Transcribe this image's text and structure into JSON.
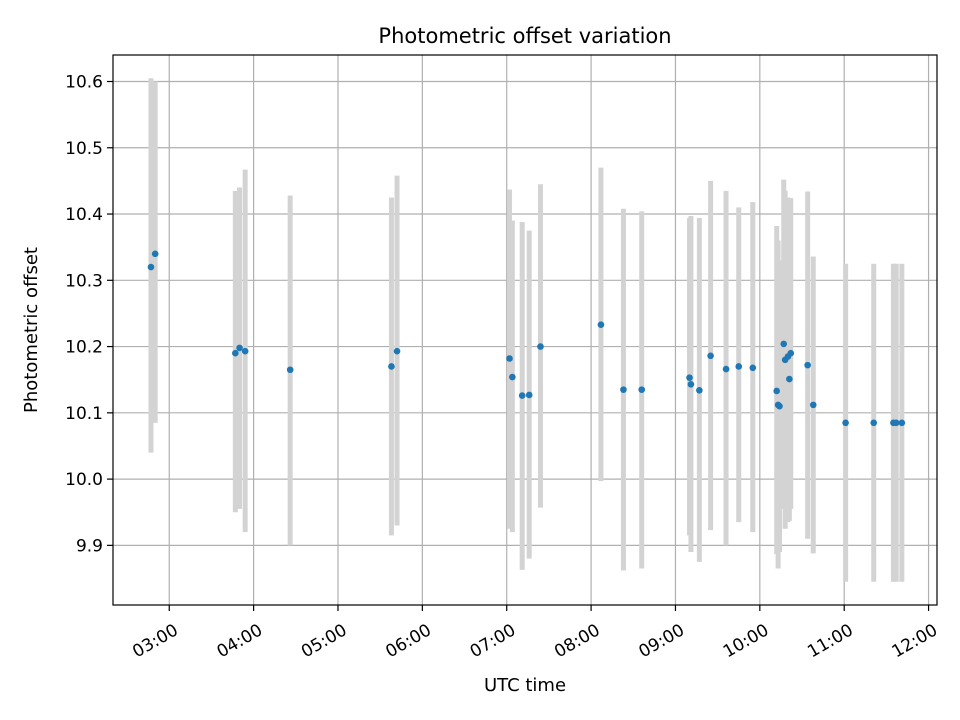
{
  "chart_data": {
    "type": "scatter",
    "title": "Photometric offset variation",
    "xlabel": "UTC time",
    "ylabel": "Photometric offset",
    "x_axis_type": "time",
    "xlim": [
      "02:20",
      "12:06"
    ],
    "ylim": [
      9.81,
      10.64
    ],
    "x_ticks": [
      "03:00",
      "04:00",
      "05:00",
      "06:00",
      "07:00",
      "08:00",
      "09:00",
      "10:00",
      "11:00",
      "12:00"
    ],
    "y_ticks": [
      "9.9",
      "10.0",
      "10.1",
      "10.2",
      "10.3",
      "10.4",
      "10.5",
      "10.6"
    ],
    "grid": true,
    "marker_color": "#1f77b4",
    "errorbar_color": "#d3d3d3",
    "points": [
      {
        "x": "02:47",
        "y": 10.32,
        "ylow": 10.04,
        "yhigh": 10.605
      },
      {
        "x": "02:50",
        "y": 10.34,
        "ylow": 10.085,
        "yhigh": 10.6
      },
      {
        "x": "03:47",
        "y": 10.19,
        "ylow": 9.95,
        "yhigh": 10.435
      },
      {
        "x": "03:50",
        "y": 10.198,
        "ylow": 9.955,
        "yhigh": 10.44
      },
      {
        "x": "03:54",
        "y": 10.193,
        "ylow": 9.92,
        "yhigh": 10.467
      },
      {
        "x": "04:26",
        "y": 10.165,
        "ylow": 9.9,
        "yhigh": 10.428
      },
      {
        "x": "05:38",
        "y": 10.17,
        "ylow": 9.915,
        "yhigh": 10.425
      },
      {
        "x": "05:42",
        "y": 10.193,
        "ylow": 9.93,
        "yhigh": 10.458
      },
      {
        "x": "07:02",
        "y": 10.182,
        "ylow": 9.925,
        "yhigh": 10.437
      },
      {
        "x": "07:04",
        "y": 10.154,
        "ylow": 9.92,
        "yhigh": 10.39
      },
      {
        "x": "07:11",
        "y": 10.126,
        "ylow": 9.863,
        "yhigh": 10.388
      },
      {
        "x": "07:16",
        "y": 10.127,
        "ylow": 9.88,
        "yhigh": 10.375
      },
      {
        "x": "07:24",
        "y": 10.2,
        "ylow": 9.957,
        "yhigh": 10.445
      },
      {
        "x": "08:07",
        "y": 10.233,
        "ylow": 9.997,
        "yhigh": 10.47
      },
      {
        "x": "08:23",
        "y": 10.135,
        "ylow": 9.862,
        "yhigh": 10.408
      },
      {
        "x": "08:36",
        "y": 10.135,
        "ylow": 9.865,
        "yhigh": 10.404
      },
      {
        "x": "09:10",
        "y": 10.153,
        "ylow": 9.915,
        "yhigh": 10.394
      },
      {
        "x": "09:11",
        "y": 10.143,
        "ylow": 9.89,
        "yhigh": 10.397
      },
      {
        "x": "09:17",
        "y": 10.134,
        "ylow": 9.875,
        "yhigh": 10.394
      },
      {
        "x": "09:25",
        "y": 10.186,
        "ylow": 9.923,
        "yhigh": 10.45
      },
      {
        "x": "09:36",
        "y": 10.166,
        "ylow": 9.9,
        "yhigh": 10.435
      },
      {
        "x": "09:45",
        "y": 10.17,
        "ylow": 9.935,
        "yhigh": 10.41
      },
      {
        "x": "09:55",
        "y": 10.168,
        "ylow": 9.92,
        "yhigh": 10.418
      },
      {
        "x": "10:12",
        "y": 10.133,
        "ylow": 9.887,
        "yhigh": 10.382
      },
      {
        "x": "10:13",
        "y": 10.112,
        "ylow": 9.865,
        "yhigh": 10.36
      },
      {
        "x": "10:14",
        "y": 10.11,
        "ylow": 9.89,
        "yhigh": 10.33
      },
      {
        "x": "10:17",
        "y": 10.204,
        "ylow": 9.955,
        "yhigh": 10.452
      },
      {
        "x": "10:18",
        "y": 10.18,
        "ylow": 9.925,
        "yhigh": 10.435
      },
      {
        "x": "10:20",
        "y": 10.185,
        "ylow": 9.935,
        "yhigh": 10.425
      },
      {
        "x": "10:21",
        "y": 10.151,
        "ylow": 9.937,
        "yhigh": 10.365
      },
      {
        "x": "10:22",
        "y": 10.19,
        "ylow": 9.955,
        "yhigh": 10.424
      },
      {
        "x": "10:34",
        "y": 10.172,
        "ylow": 9.91,
        "yhigh": 10.434
      },
      {
        "x": "10:38",
        "y": 10.112,
        "ylow": 9.888,
        "yhigh": 10.336
      },
      {
        "x": "11:01",
        "y": 10.085,
        "ylow": 9.845,
        "yhigh": 10.325
      },
      {
        "x": "11:21",
        "y": 10.085,
        "ylow": 9.845,
        "yhigh": 10.325
      },
      {
        "x": "11:35",
        "y": 10.085,
        "ylow": 9.845,
        "yhigh": 10.325
      },
      {
        "x": "11:37",
        "y": 10.085,
        "ylow": 9.845,
        "yhigh": 10.325
      },
      {
        "x": "11:41",
        "y": 10.085,
        "ylow": 9.845,
        "yhigh": 10.325
      }
    ]
  }
}
